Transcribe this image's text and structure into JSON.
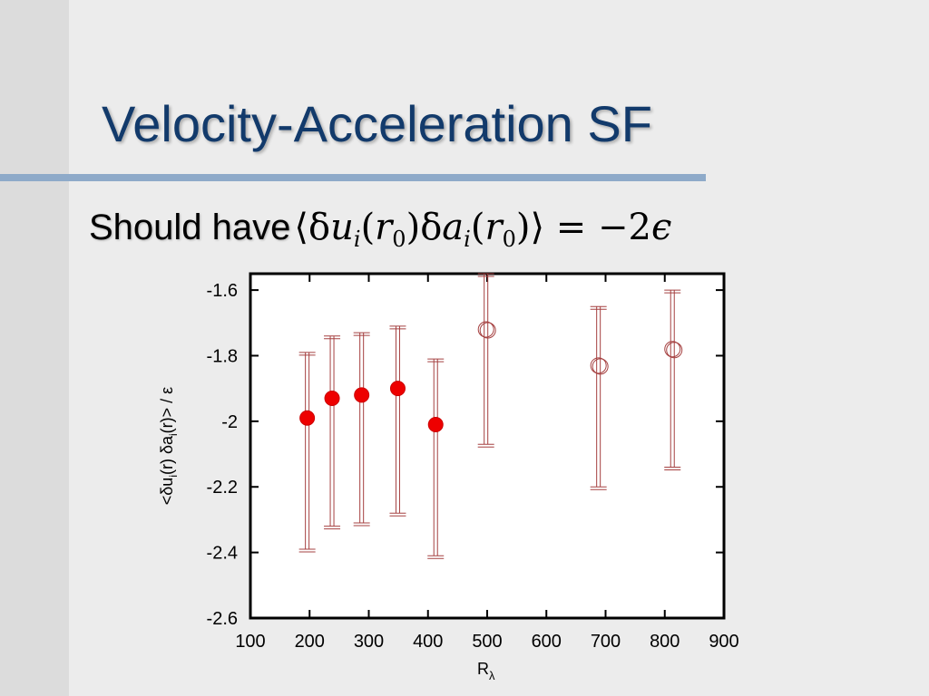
{
  "slide": {
    "title": "Velocity-Acceleration SF",
    "bullet_text": "Should have",
    "equation": {
      "lang": "⟨",
      "delta1": "δ",
      "u": "u",
      "sub_i1": "i",
      "lp1": "(",
      "r1": "r",
      "sub_01": "0",
      "rp1": ")",
      "delta2": "δ",
      "a": "a",
      "sub_i2": "i",
      "lp2": "(",
      "r2": "r",
      "sub_02": "0",
      "rp2": ")",
      "rang": "⟩",
      "rhs": " = −2",
      "eps": "ϵ"
    }
  },
  "chart_data": {
    "type": "scatter",
    "title": "",
    "xlabel": {
      "main": "R",
      "sub": "λ"
    },
    "ylabel": {
      "p1": "<δu",
      "s1": "i",
      "p2": "(r) δa",
      "s2": "i",
      "p3": "(r)> / ε"
    },
    "xlim": [
      100,
      900
    ],
    "ylim": [
      -2.6,
      -1.5
    ],
    "x_ticks": [
      100,
      200,
      300,
      400,
      500,
      600,
      700,
      800,
      900
    ],
    "x_tick_labels": [
      "100",
      "200",
      "300",
      "400",
      "500",
      "600",
      "700",
      "800",
      "900"
    ],
    "y_ticks": [
      -1.6,
      -1.8,
      -2.0,
      -2.2,
      -2.4,
      -2.6
    ],
    "y_tick_labels": [
      "-1.6",
      "-1.8",
      "-2",
      "-2.2",
      "-2.4",
      "-2.6"
    ],
    "grid": false,
    "series": [
      {
        "marker": "filled-circle",
        "color": "#ee0000",
        "points": [
          {
            "x": 196,
            "y": -1.99,
            "ylo": -2.39,
            "yhi": -1.79
          },
          {
            "x": 238,
            "y": -1.93,
            "ylo": -2.32,
            "yhi": -1.74
          },
          {
            "x": 288,
            "y": -1.92,
            "ylo": -2.31,
            "yhi": -1.73
          },
          {
            "x": 349,
            "y": -1.9,
            "ylo": -2.28,
            "yhi": -1.71
          },
          {
            "x": 413,
            "y": -2.01,
            "ylo": -2.41,
            "yhi": -1.81
          }
        ]
      },
      {
        "marker": "open-circle",
        "color": "#a54040",
        "points": [
          {
            "x": 498,
            "y": -1.72,
            "ylo": -2.07,
            "yhi": -1.55
          },
          {
            "x": 688,
            "y": -1.83,
            "ylo": -2.2,
            "yhi": -1.65
          },
          {
            "x": 813,
            "y": -1.78,
            "ylo": -2.14,
            "yhi": -1.6
          }
        ]
      }
    ],
    "errorbar_color": "#a54040"
  }
}
